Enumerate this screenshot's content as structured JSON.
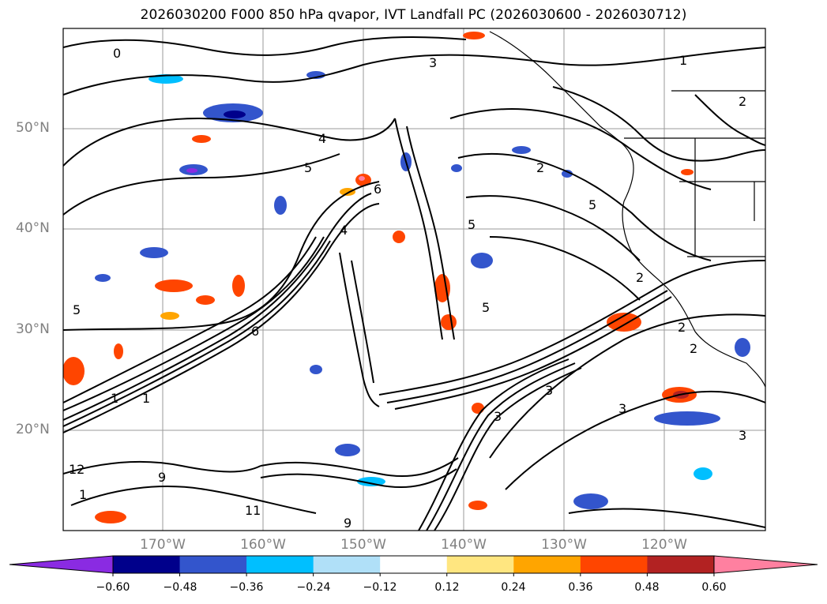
{
  "title": "2026030200 F000 850 hPa qvapor, IVT Landfall PC (2026030600 - 2026030712)",
  "map": {
    "lat_ticks": [
      "50°N",
      "40°N",
      "30°N",
      "20°N"
    ],
    "lon_ticks": [
      "170°W",
      "160°W",
      "150°W",
      "140°W",
      "130°W",
      "120°W"
    ],
    "extent": {
      "lon_min": -179,
      "lon_max": -109,
      "lat_min": 10,
      "lat_max": 60
    },
    "contour_labels": [
      "0",
      "1",
      "3",
      "1",
      "2",
      "4",
      "5",
      "6",
      "5",
      "2",
      "5",
      "5",
      "3",
      "2",
      "1",
      "2",
      "5",
      "6",
      "9",
      "12",
      "1",
      "4",
      "3",
      "3",
      "2",
      "9",
      "11",
      "3"
    ]
  },
  "colorbar": {
    "tick_labels": [
      "−0.60",
      "−0.48",
      "−0.36",
      "−0.24",
      "−0.12",
      "0.12",
      "0.24",
      "0.36",
      "0.48",
      "0.60"
    ],
    "colors": [
      "#8a2be2",
      "#00008b",
      "#3355cc",
      "#00bfff",
      "#b0e0f8",
      "#ffffff",
      "#ffe680",
      "#ffa500",
      "#ff4500",
      "#b22222",
      "#ff80a0"
    ],
    "extend": "both"
  }
}
